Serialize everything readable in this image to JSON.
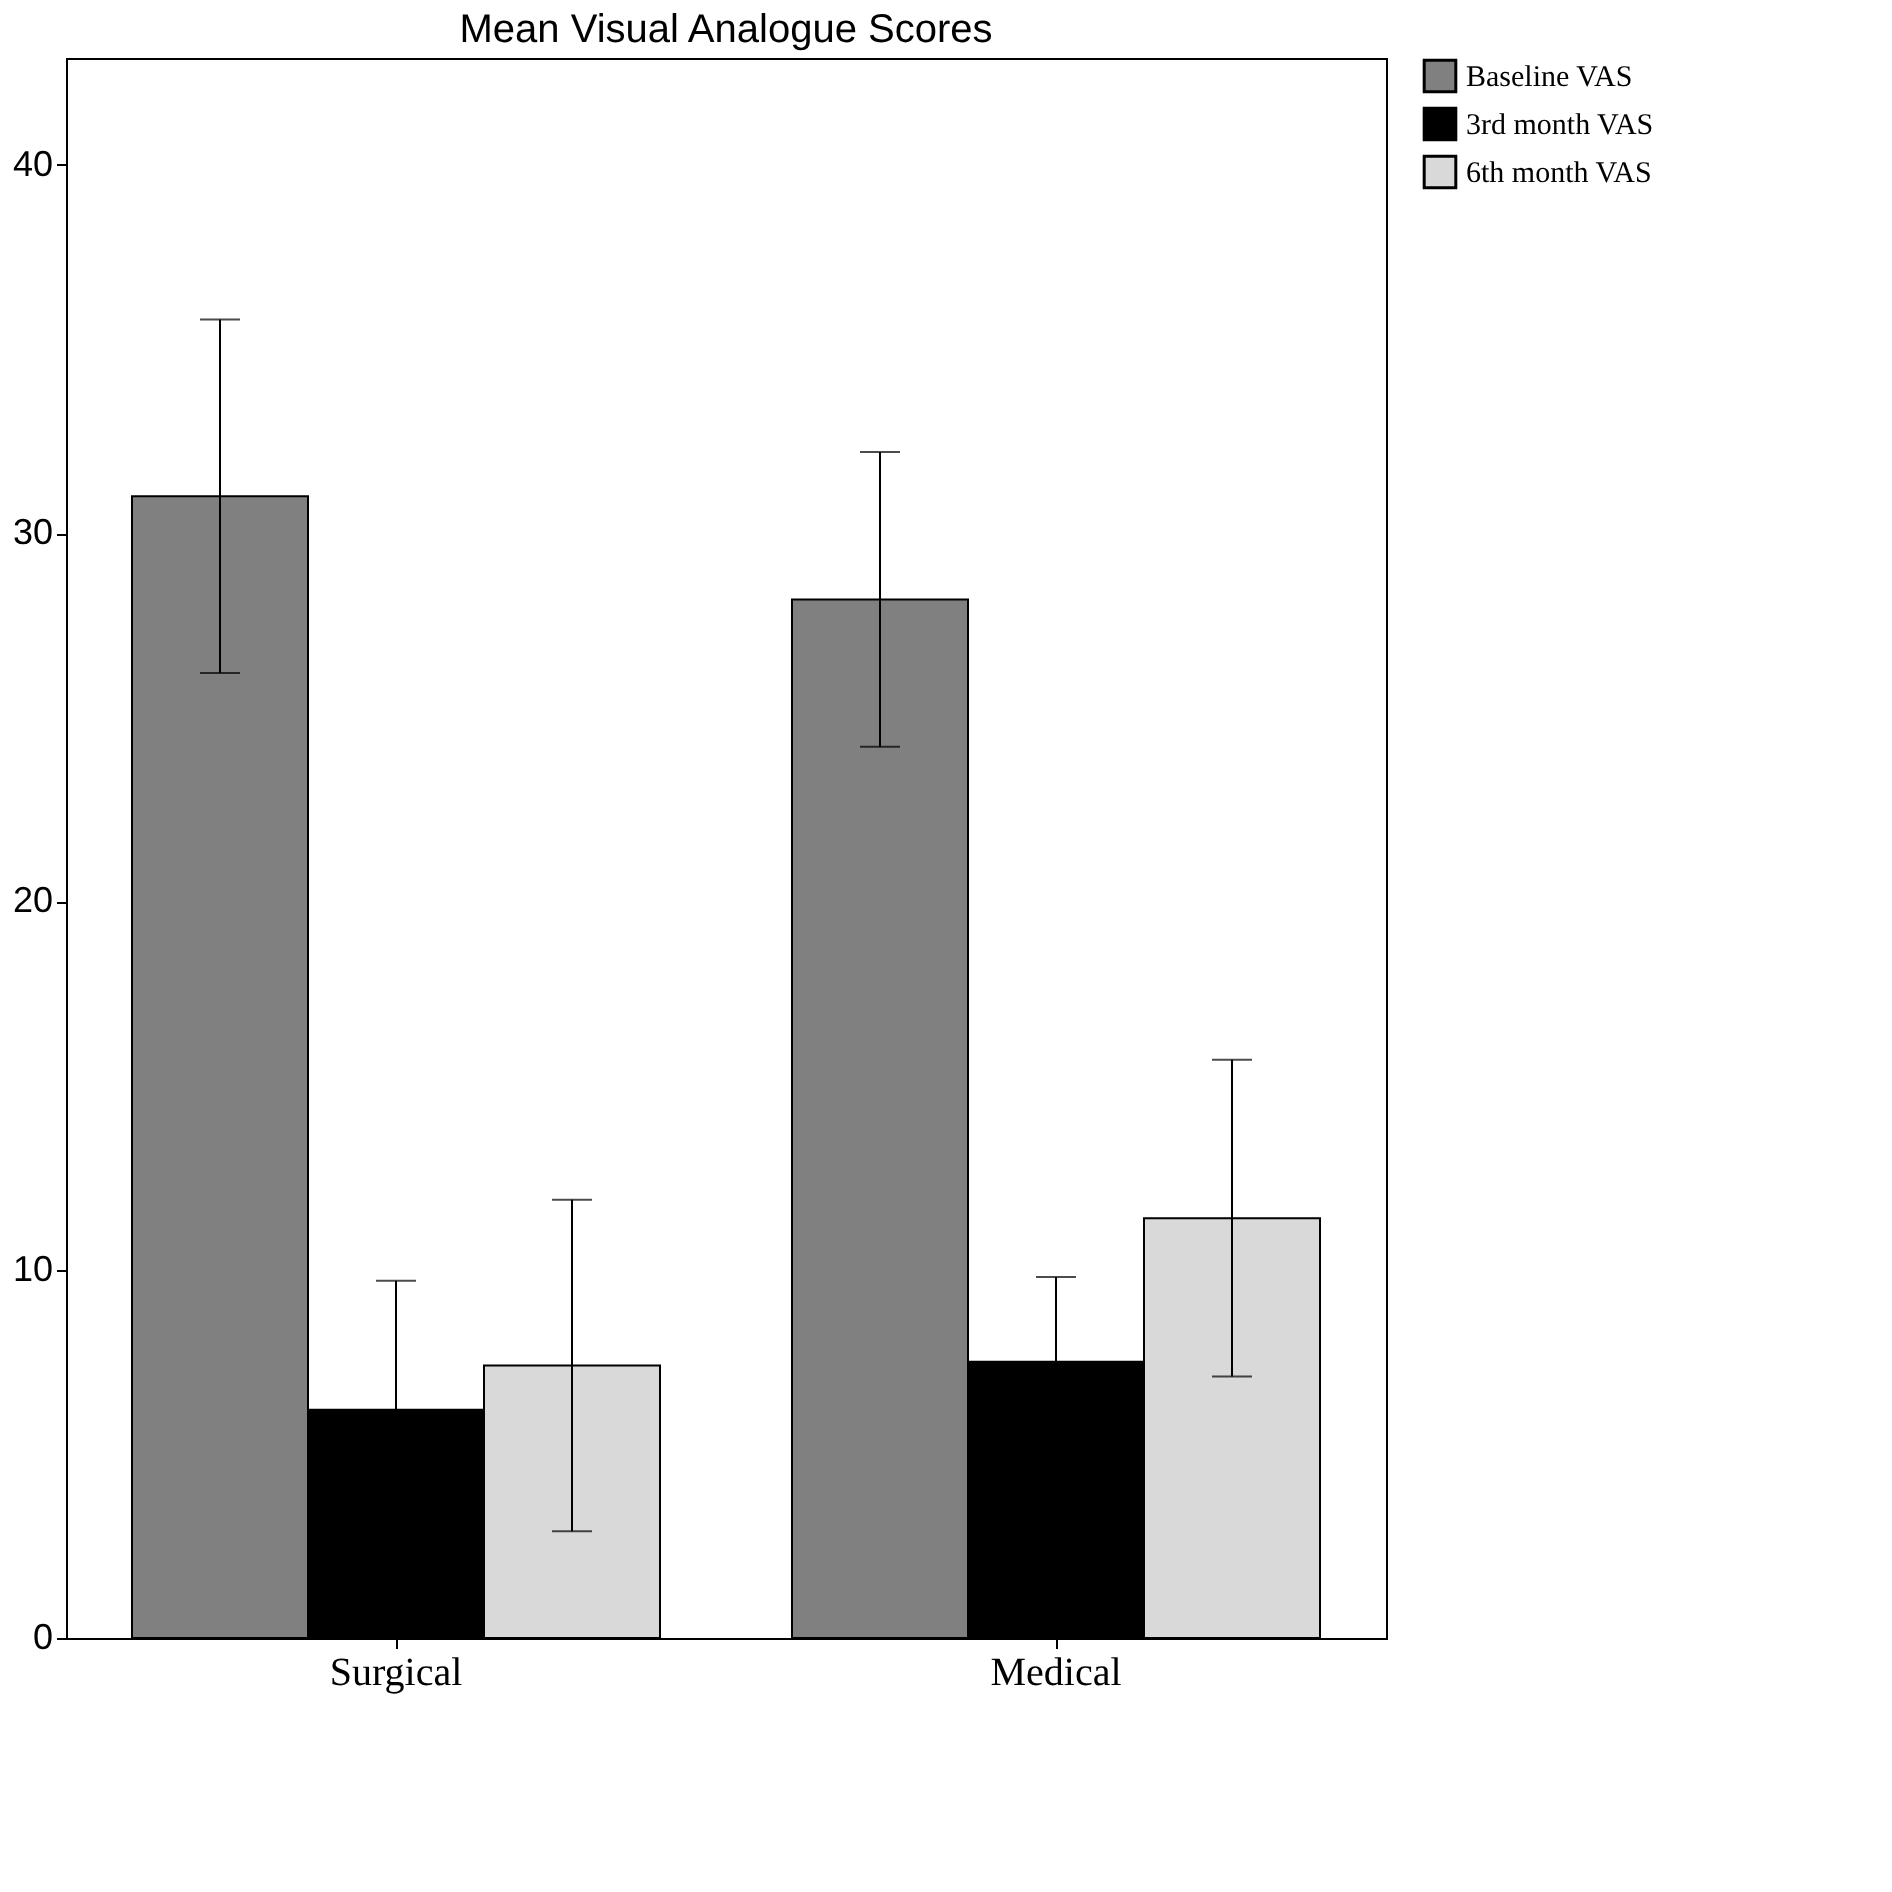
{
  "chart_data": {
    "type": "bar",
    "title": "Mean Visual Analogue Scores",
    "categories": [
      "Surgical",
      "Medical"
    ],
    "series": [
      {
        "name": "Baseline VAS",
        "color": "#808080",
        "values": [
          31.0,
          28.2
        ],
        "errors": [
          4.8,
          4.0
        ]
      },
      {
        "name": "3rd month VAS",
        "color": "#000000",
        "values": [
          6.2,
          7.5
        ],
        "errors": [
          3.5,
          2.3
        ]
      },
      {
        "name": "6th month VAS",
        "color": "#d9d9d9",
        "values": [
          7.4,
          11.4
        ],
        "errors": [
          4.5,
          4.3
        ]
      }
    ],
    "ylim": [
      0,
      42.9
    ],
    "yticks": [
      0,
      10,
      20,
      30,
      40
    ],
    "grid": false,
    "legend": "top right"
  }
}
